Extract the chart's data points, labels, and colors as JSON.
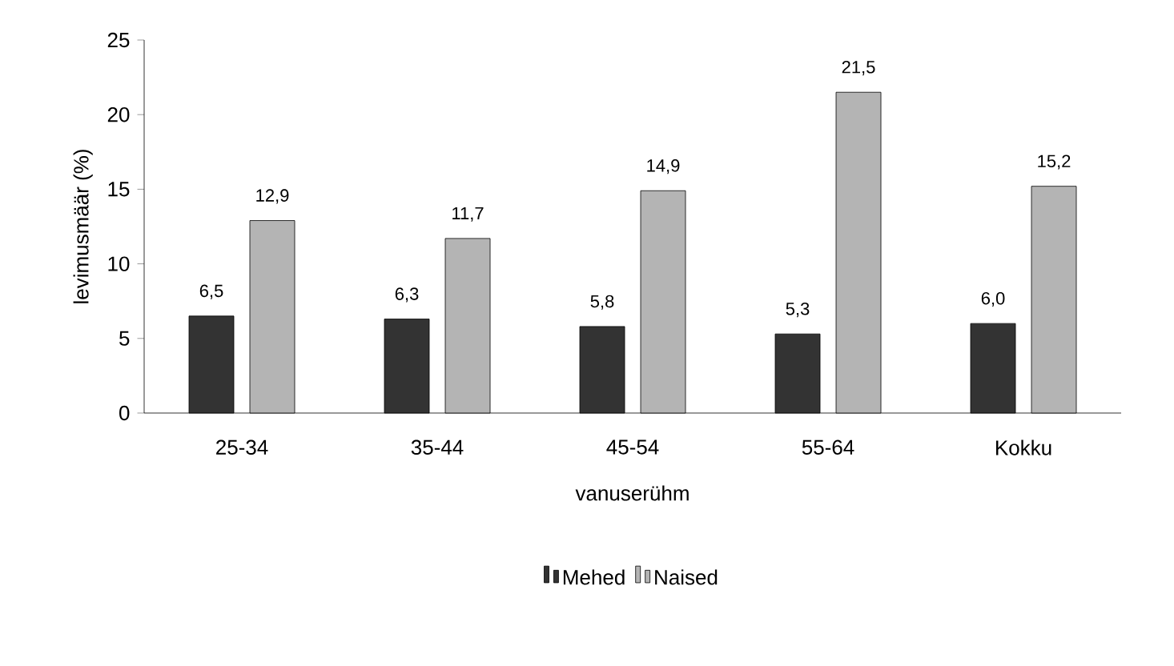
{
  "chart_data": {
    "type": "bar",
    "xlabel": "vanuserühm",
    "ylabel": "levimusmäär (%)",
    "categories": [
      "25-34",
      "35-44",
      "45-54",
      "55-64",
      "Kokku"
    ],
    "series": [
      {
        "name": "Mehed",
        "color": "#333333",
        "values": [
          6.5,
          6.3,
          5.8,
          5.3,
          6.0
        ],
        "value_labels": [
          "6,5",
          "6,3",
          "5,8",
          "5,3",
          "6,0"
        ]
      },
      {
        "name": "Naised",
        "color": "#b4b4b4",
        "values": [
          12.9,
          11.7,
          14.9,
          21.5,
          15.2
        ],
        "value_labels": [
          "12,9",
          "11,7",
          "14,9",
          "21,5",
          "15,2"
        ]
      }
    ],
    "ylim": [
      0,
      25
    ],
    "yticks": [
      0,
      5,
      10,
      15,
      20,
      25
    ],
    "legend": "bottom"
  }
}
